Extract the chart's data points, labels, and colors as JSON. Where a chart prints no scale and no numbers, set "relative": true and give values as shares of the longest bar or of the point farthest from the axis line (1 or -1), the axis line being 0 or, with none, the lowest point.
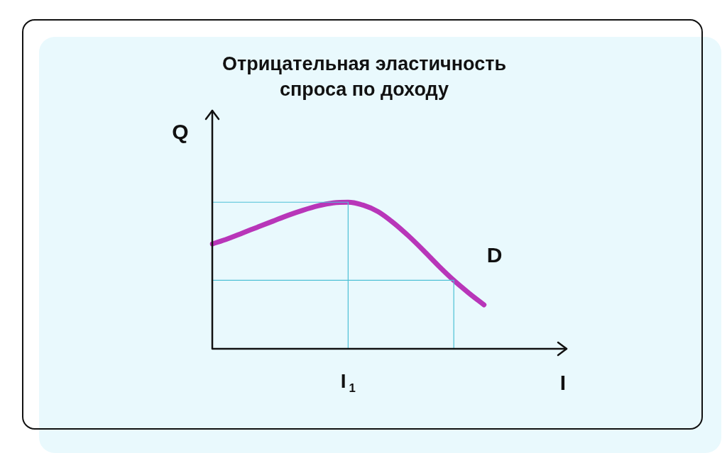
{
  "chart_data": {
    "type": "line",
    "title": "Отрицательная эластичность\nспроса по доходу",
    "xlabel": "I",
    "ylabel": "Q",
    "relative": true,
    "grid": false,
    "legend": false,
    "marker": "none",
    "line_style": "solid",
    "annotations": [
      "I$_{1}$"
    ],
    "categories": [
      null,
      null,
      null,
      null,
      null,
      null,
      null,
      null,
      null,
      null,
      null,
      null,
      null,
      null,
      null,
      null,
      null,
      null,
      null,
      null,
      null,
      null,
      null,
      null
    ],
    "series": [
      {
        "name": "D",
        "color": "#b836b9",
        "values": [
          0.715,
          0.75,
          0.79,
          0.83,
          0.87,
          0.91,
          0.945,
          0.975,
          0.995,
          1,
          0.98,
          0.935,
          0.86,
          0.77,
          0.67,
          0.565,
          0.467,
          0.38,
          0.3,
          null,
          null,
          null,
          null,
          null
        ]
      }
    ],
    "ref_lines": [
      {
        "axis": "y",
        "value": 1,
        "color": "#4ec0d6"
      },
      {
        "axis": "y",
        "value": 0.467,
        "color": "#4ec0d6"
      }
    ]
  }
}
